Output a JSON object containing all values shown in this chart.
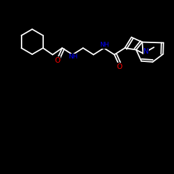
{
  "background_color": "#000000",
  "bond_color": "#ffffff",
  "N_color": "#0000ff",
  "O_color": "#ff0000",
  "lw": 1.3,
  "fs": 6.5,
  "xlim": [
    0,
    10
  ],
  "ylim": [
    0,
    10
  ]
}
